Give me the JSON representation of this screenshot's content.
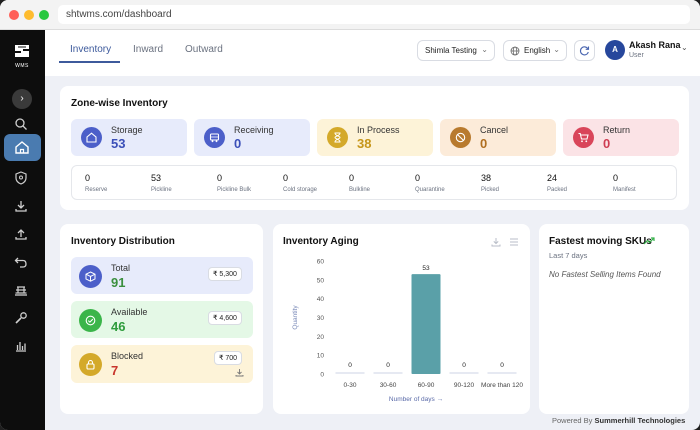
{
  "browser": {
    "url": "shtwms.com/dashboard"
  },
  "sidebar": {
    "logo": "WMS",
    "expand_icon": "chevron-right-icon",
    "items": [
      {
        "name": "search",
        "icon": "search-icon"
      },
      {
        "name": "home",
        "icon": "home-icon",
        "active": true
      },
      {
        "name": "shield",
        "icon": "shield-icon"
      },
      {
        "name": "download",
        "icon": "download-icon"
      },
      {
        "name": "upload",
        "icon": "upload-icon"
      },
      {
        "name": "return",
        "icon": "undo-icon"
      },
      {
        "name": "stack",
        "icon": "stack-icon"
      },
      {
        "name": "tools",
        "icon": "wrench-icon"
      },
      {
        "name": "reports",
        "icon": "bar-chart-icon"
      }
    ]
  },
  "header": {
    "tabs": [
      {
        "label": "Inventory",
        "active": true
      },
      {
        "label": "Inward"
      },
      {
        "label": "Outward"
      }
    ],
    "warehouse": "Shimla Testing",
    "language": "English",
    "user": {
      "initial": "A",
      "name": "Akash Rana",
      "role": "User"
    }
  },
  "zone": {
    "title": "Zone-wise Inventory",
    "boxes": [
      {
        "label": "Storage",
        "value": "53",
        "bg": "#e7ebfb",
        "icon_bg": "#4c5fc9",
        "value_color": "#3b4fb8",
        "icon": "home-icon"
      },
      {
        "label": "Receiving",
        "value": "0",
        "bg": "#e7ebfb",
        "icon_bg": "#4c5fc9",
        "value_color": "#3b4fb8",
        "icon": "truck-icon"
      },
      {
        "label": "In Process",
        "value": "38",
        "bg": "#fdf3d8",
        "icon_bg": "#d4a92a",
        "value_color": "#c6961a",
        "icon": "hourglass-icon"
      },
      {
        "label": "Cancel",
        "value": "0",
        "bg": "#fcebd9",
        "icon_bg": "#b87a2e",
        "value_color": "#b06f21",
        "icon": "ban-icon"
      },
      {
        "label": "Return",
        "value": "0",
        "bg": "#fbe3e6",
        "icon_bg": "#d9455a",
        "value_color": "#cf3c52",
        "icon": "cart-icon"
      }
    ],
    "sub": [
      {
        "label": "Reserve",
        "value": "0"
      },
      {
        "label": "Pickline",
        "value": "53"
      },
      {
        "label": "Pickline Bulk",
        "value": "0"
      },
      {
        "label": "Cold storage",
        "value": "0"
      },
      {
        "label": "Bulkline",
        "value": "0"
      },
      {
        "label": "Quarantine",
        "value": "0"
      },
      {
        "label": "Picked",
        "value": "38"
      },
      {
        "label": "Packed",
        "value": "24"
      },
      {
        "label": "Manifest",
        "value": "0"
      }
    ]
  },
  "distribution": {
    "title": "Inventory Distribution",
    "boxes": [
      {
        "label": "Total",
        "value": "91",
        "price": "₹ 5,300",
        "bg": "#e7ebfb",
        "icon_bg": "#4c5fc9",
        "value_color": "#3b8f3e",
        "icon": "box-icon"
      },
      {
        "label": "Available",
        "value": "46",
        "price": "₹ 4,600",
        "bg": "#e4f8e6",
        "icon_bg": "#3bb54a",
        "value_color": "#2e9c3c",
        "icon": "check-circle-icon"
      },
      {
        "label": "Blocked",
        "value": "7",
        "price": "₹ 700",
        "bg": "#fdf3d8",
        "icon_bg": "#d4a92a",
        "value_color": "#c8352c",
        "icon": "lock-icon",
        "download_icon": "download-icon"
      }
    ]
  },
  "chart_data": {
    "type": "bar",
    "title": "Inventory Aging",
    "categories": [
      "0-30",
      "30-60",
      "60-90",
      "90-120",
      "More than 120"
    ],
    "values": [
      0,
      0,
      53,
      0,
      0
    ],
    "xlabel": "Number of days →",
    "ylabel": "Quantity",
    "ylim": [
      0,
      60
    ],
    "yticks": [
      0,
      10,
      20,
      30,
      40,
      50,
      60
    ],
    "bar_color": "#5aa0a8",
    "grid": false,
    "toolbar_icons": [
      "download-icon",
      "menu-icon"
    ]
  },
  "fastest": {
    "title": "Fastest moving SKUs",
    "trend_icon": "trending-up-icon",
    "period": "Last 7 days",
    "empty": "No Fastest Selling Items Found"
  },
  "footer": {
    "prefix": "Powered By",
    "company": "Summerhill Technologies"
  }
}
